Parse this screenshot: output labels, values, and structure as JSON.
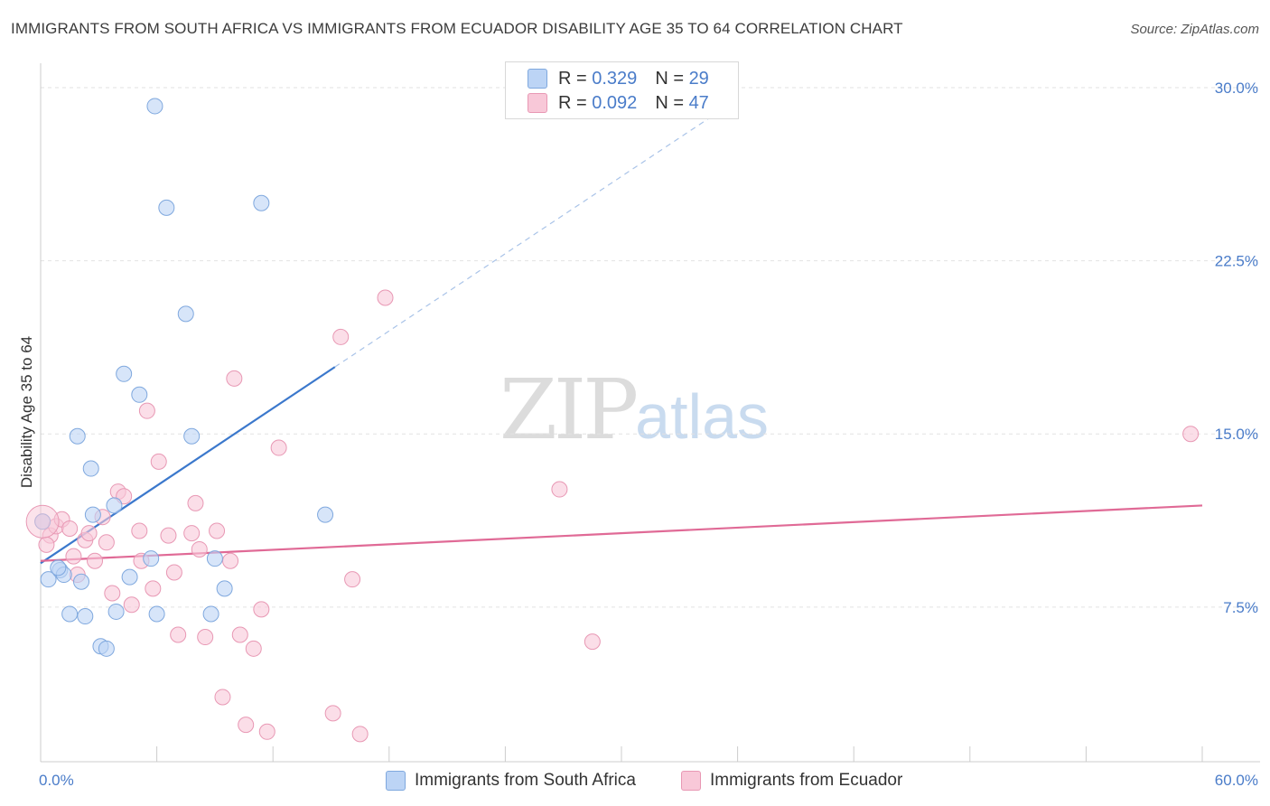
{
  "title": "IMMIGRANTS FROM SOUTH AFRICA VS IMMIGRANTS FROM ECUADOR DISABILITY AGE 35 TO 64 CORRELATION CHART",
  "source": "Source: ZipAtlas.com",
  "watermark": {
    "zip": "ZIP",
    "atlas": "atlas"
  },
  "legend": {
    "rows": [
      {
        "r_label": "R =",
        "r_value": "0.329",
        "n_label": "N =",
        "n_value": "29"
      },
      {
        "r_label": "R =",
        "r_value": "0.092",
        "n_label": "N =",
        "n_value": "47"
      }
    ]
  },
  "colors": {
    "blue_fill": "#bcd4f5",
    "blue_stroke": "#7fa8de",
    "blue_line": "#3b78cc",
    "pink_fill": "#f8c8d8",
    "pink_stroke": "#e898b4",
    "pink_line": "#e06a96",
    "tick_label": "#4a7cc9",
    "grid": "#e2e2e2"
  },
  "chart_data": {
    "type": "scatter",
    "title": "IMMIGRANTS FROM SOUTH AFRICA VS IMMIGRANTS FROM ECUADOR DISABILITY AGE 35 TO 64 CORRELATION CHART",
    "xlabel": "",
    "ylabel": "Disability Age 35 to 64",
    "xlim": [
      0,
      60
    ],
    "ylim": [
      0,
      31
    ],
    "x_tick_labels": [
      "0.0%",
      "60.0%"
    ],
    "y_ticks": [
      7.5,
      15.0,
      22.5,
      30.0
    ],
    "y_tick_labels": [
      "7.5%",
      "15.0%",
      "22.5%",
      "30.0%"
    ],
    "grid": true,
    "legend_position": "top-center",
    "series": [
      {
        "name": "Immigrants from South Africa",
        "color": "blue",
        "points": [
          [
            0.1,
            11.2
          ],
          [
            0.4,
            8.7
          ],
          [
            1.0,
            9.1
          ],
          [
            1.2,
            8.9
          ],
          [
            1.5,
            7.2
          ],
          [
            1.9,
            14.9
          ],
          [
            2.1,
            8.6
          ],
          [
            2.3,
            7.1
          ],
          [
            2.7,
            11.5
          ],
          [
            2.6,
            13.5
          ],
          [
            3.1,
            5.8
          ],
          [
            3.4,
            5.7
          ],
          [
            3.8,
            11.9
          ],
          [
            3.9,
            7.3
          ],
          [
            4.3,
            17.6
          ],
          [
            4.6,
            8.8
          ],
          [
            5.1,
            16.7
          ],
          [
            5.7,
            9.6
          ],
          [
            5.9,
            29.2
          ],
          [
            6.0,
            7.2
          ],
          [
            6.5,
            24.8
          ],
          [
            7.5,
            20.2
          ],
          [
            7.8,
            14.9
          ],
          [
            8.8,
            7.2
          ],
          [
            9.0,
            9.6
          ],
          [
            9.5,
            8.3
          ],
          [
            11.4,
            25.0
          ],
          [
            14.7,
            11.5
          ],
          [
            0.9,
            9.2
          ]
        ],
        "trend": {
          "x": [
            0.0,
            15.2
          ],
          "y": [
            9.4,
            17.9
          ]
        },
        "trend_extension": {
          "x": [
            15.2,
            36.0
          ],
          "y": [
            17.9,
            29.5
          ]
        }
      },
      {
        "name": "Immigrants from Ecuador",
        "color": "pink",
        "points": [
          [
            0.1,
            11.2
          ],
          [
            0.5,
            10.6
          ],
          [
            0.8,
            11.0
          ],
          [
            1.1,
            11.3
          ],
          [
            1.5,
            10.9
          ],
          [
            1.7,
            9.7
          ],
          [
            1.9,
            8.9
          ],
          [
            2.3,
            10.4
          ],
          [
            2.5,
            10.7
          ],
          [
            2.8,
            9.5
          ],
          [
            3.2,
            11.4
          ],
          [
            3.4,
            10.3
          ],
          [
            3.7,
            8.1
          ],
          [
            4.0,
            12.5
          ],
          [
            4.3,
            12.3
          ],
          [
            4.7,
            7.6
          ],
          [
            5.1,
            10.8
          ],
          [
            5.2,
            9.5
          ],
          [
            5.5,
            16.0
          ],
          [
            5.8,
            8.3
          ],
          [
            6.1,
            13.8
          ],
          [
            6.6,
            10.6
          ],
          [
            6.9,
            9.0
          ],
          [
            7.1,
            6.3
          ],
          [
            7.8,
            10.7
          ],
          [
            8.0,
            12.0
          ],
          [
            8.2,
            10.0
          ],
          [
            8.5,
            6.2
          ],
          [
            9.1,
            10.8
          ],
          [
            9.4,
            3.6
          ],
          [
            9.8,
            9.5
          ],
          [
            10.0,
            17.4
          ],
          [
            10.3,
            6.3
          ],
          [
            10.6,
            2.4
          ],
          [
            11.0,
            5.7
          ],
          [
            11.4,
            7.4
          ],
          [
            11.7,
            2.1
          ],
          [
            12.3,
            14.4
          ],
          [
            15.1,
            2.9
          ],
          [
            15.5,
            19.2
          ],
          [
            16.1,
            8.7
          ],
          [
            16.5,
            2.0
          ],
          [
            17.8,
            20.9
          ],
          [
            26.8,
            12.6
          ],
          [
            28.5,
            6.0
          ],
          [
            59.4,
            15.0
          ],
          [
            0.3,
            10.2
          ]
        ],
        "trend": {
          "x": [
            0.0,
            60.0
          ],
          "y": [
            9.5,
            11.9
          ]
        }
      }
    ]
  }
}
